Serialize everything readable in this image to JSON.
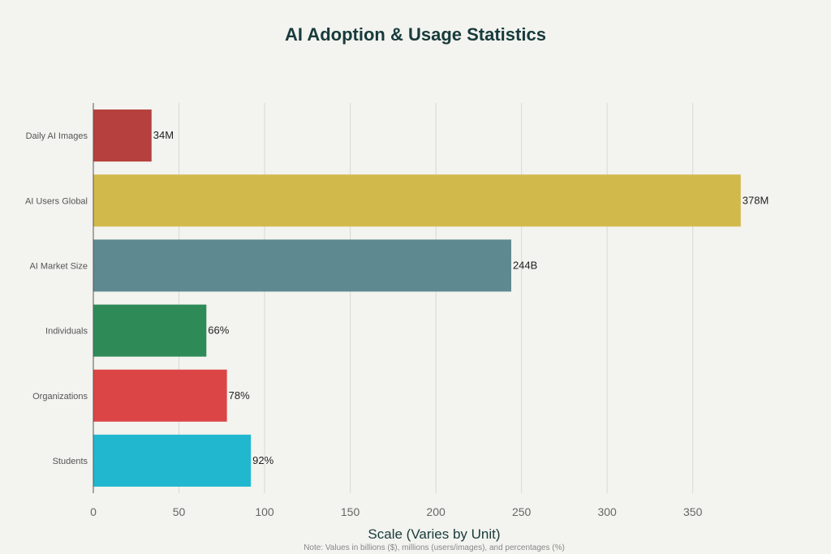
{
  "chart_data": {
    "type": "bar",
    "orientation": "horizontal",
    "title": "AI Adoption & Usage Statistics",
    "xlabel": "Scale (Varies by Unit)",
    "note": "Note: Values in billions ($), millions (users/images), and percentages (%)",
    "ylabel": "",
    "categories": [
      "Daily AI Images",
      "AI Users Global",
      "AI Market Size",
      "Individuals",
      "Organizations",
      "Students"
    ],
    "values": [
      34,
      378,
      244,
      66,
      78,
      92
    ],
    "data_labels": [
      "34M",
      "378M",
      "244B",
      "66%",
      "78%",
      "92%"
    ],
    "colors": [
      "#b5403d",
      "#d2b94c",
      "#5e8990",
      "#2e8b57",
      "#dc4545",
      "#21b8cf"
    ],
    "xlim": [
      0,
      380
    ],
    "xticks": [
      0,
      50,
      100,
      150,
      200,
      250,
      300,
      350
    ],
    "grid": "vertical",
    "legend": "none"
  }
}
